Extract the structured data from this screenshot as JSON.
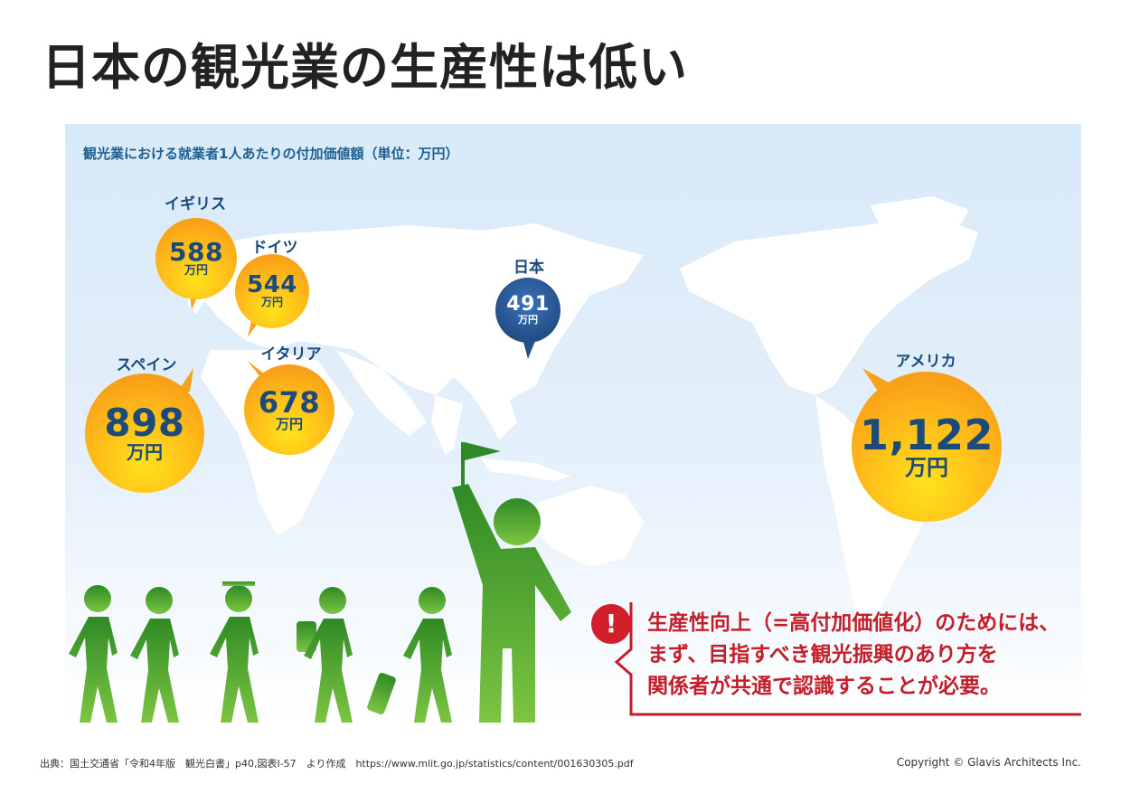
{
  "title": "日本の観光業の生産性は低い",
  "subtitle": "観光業における就業者1人あたりの付加価値額（単位：万円）",
  "countries": [
    {
      "name": "イギリス",
      "value": "588",
      "unit": "万円"
    },
    {
      "name": "ドイツ",
      "value": "544",
      "unit": "万円"
    },
    {
      "name": "日本",
      "value": "491",
      "unit": "万円"
    },
    {
      "name": "スペイン",
      "value": "898",
      "unit": "万円"
    },
    {
      "name": "イタリア",
      "value": "678",
      "unit": "万円"
    },
    {
      "name": "アメリカ",
      "value": "1,122",
      "unit": "万円"
    }
  ],
  "callout": {
    "icon": "!",
    "lines": [
      "生産性向上（=高付加価値化）のためには、",
      "まず、目指すべき観光振興のあり方を",
      "関係者が共通で認識することが必要。"
    ]
  },
  "source": "出典：国土交通省「令和4年版　観光白書」p40,図表Ⅰ-57　より作成　https://www.mlit.go.jp/statistics/content/001630305.pdf",
  "copyright": "Copyright © Glavis Architects Inc.",
  "colors": {
    "bubble_orange": "#f7a21b",
    "bubble_blue": "#244f88",
    "accent_red": "#c21f2b",
    "figure_green": "#3f9d2a"
  }
}
